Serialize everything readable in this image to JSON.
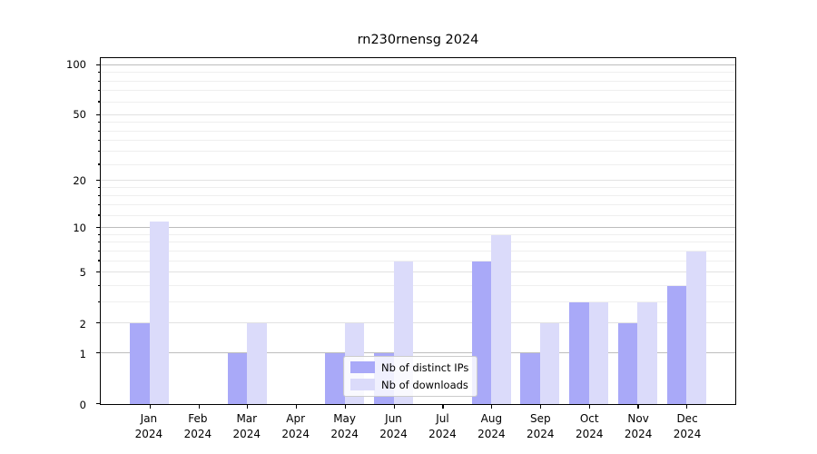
{
  "title": "rn230rnensg 2024",
  "chart_data": {
    "type": "bar",
    "title": "rn230rnensg 2024",
    "categories": [
      "Jan 2024",
      "Feb 2024",
      "Mar 2024",
      "Apr 2024",
      "May 2024",
      "Jun 2024",
      "Jul 2024",
      "Aug 2024",
      "Sep 2024",
      "Oct 2024",
      "Nov 2024",
      "Dec 2024"
    ],
    "x_tick_labels": [
      {
        "month": "Jan",
        "year": "2024"
      },
      {
        "month": "Feb",
        "year": "2024"
      },
      {
        "month": "Mar",
        "year": "2024"
      },
      {
        "month": "Apr",
        "year": "2024"
      },
      {
        "month": "May",
        "year": "2024"
      },
      {
        "month": "Jun",
        "year": "2024"
      },
      {
        "month": "Jul",
        "year": "2024"
      },
      {
        "month": "Aug",
        "year": "2024"
      },
      {
        "month": "Sep",
        "year": "2024"
      },
      {
        "month": "Oct",
        "year": "2024"
      },
      {
        "month": "Nov",
        "year": "2024"
      },
      {
        "month": "Dec",
        "year": "2024"
      }
    ],
    "series": [
      {
        "name": "Nb of distinct IPs",
        "color": "#a9a9f8",
        "values": [
          2,
          0,
          1,
          0,
          1,
          1,
          0,
          6,
          1,
          3,
          2,
          4
        ]
      },
      {
        "name": "Nb of downloads",
        "color": "#dbdbfa",
        "values": [
          11,
          0,
          2,
          0,
          2,
          6,
          0,
          9,
          2,
          3,
          3,
          7
        ]
      }
    ],
    "xlabel": "",
    "ylabel": "",
    "yscale": "log1p",
    "ylim": [
      0,
      110
    ],
    "y_tick_values": [
      0,
      1,
      2,
      5,
      10,
      20,
      50,
      100
    ],
    "y_decade_ticks": [
      1,
      10,
      100
    ],
    "y_mid_ticks": [
      2,
      5,
      20,
      50
    ],
    "y_minor_gridlines": [
      3,
      4,
      6,
      7,
      8,
      9,
      12,
      14,
      16,
      18,
      25,
      30,
      35,
      40,
      45,
      60,
      70,
      80,
      90
    ],
    "grid": true,
    "legend_position": "lower center"
  },
  "legend": {
    "items": [
      {
        "label": "Nb of distinct IPs",
        "swatch_color": "#a9a9f8"
      },
      {
        "label": "Nb of downloads",
        "swatch_color": "#dbdbfa"
      }
    ]
  }
}
